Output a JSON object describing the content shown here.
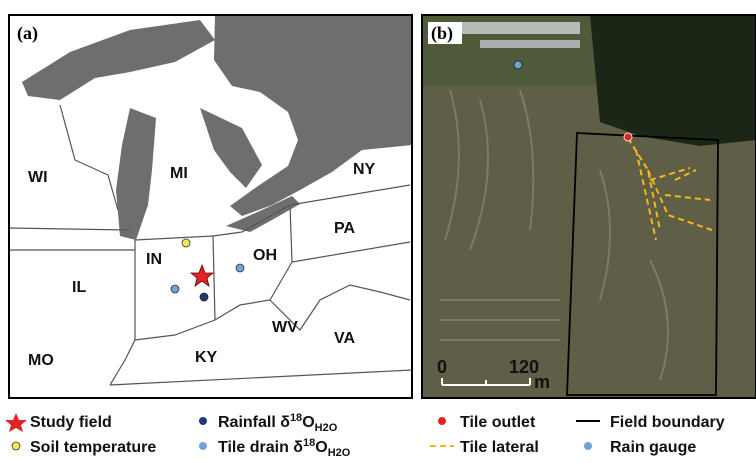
{
  "panel_a": {
    "label": "(a)",
    "states": [
      "WI",
      "MI",
      "NY",
      "IL",
      "IN",
      "OH",
      "PA",
      "MO",
      "KY",
      "WV",
      "VA"
    ],
    "legend": [
      {
        "text": "Study field"
      },
      {
        "text": "Soil temperature"
      },
      {
        "text": "Rainfall δ",
        "sup": "18",
        "base": "O",
        "sub": "H2O"
      },
      {
        "text": "Tile drain δ",
        "sup": "18",
        "base": "O",
        "sub": "H2O"
      }
    ]
  },
  "panel_b": {
    "label": "(b)",
    "scale": {
      "start": "0",
      "end": "120",
      "unit": "m"
    },
    "legend": [
      "Tile outlet",
      "Field boundary",
      "Tile lateral",
      "Rain gauge"
    ]
  }
}
